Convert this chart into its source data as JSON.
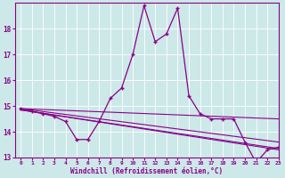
{
  "background_color": "#cde8e8",
  "line_color": "#880088",
  "xlabel": "Windchill (Refroidissement éolien,°C)",
  "xlim": [
    -0.5,
    23
  ],
  "ylim": [
    13,
    19
  ],
  "yticks": [
    13,
    14,
    15,
    16,
    17,
    18
  ],
  "xticks": [
    0,
    1,
    2,
    3,
    4,
    5,
    6,
    7,
    8,
    9,
    10,
    11,
    12,
    13,
    14,
    15,
    16,
    17,
    18,
    19,
    20,
    21,
    22,
    23
  ],
  "main_series": {
    "x": [
      0,
      1,
      2,
      3,
      4,
      5,
      6,
      7,
      8,
      9,
      10,
      11,
      12,
      13,
      14,
      15,
      16,
      17,
      18,
      19,
      20,
      21,
      22,
      23
    ],
    "y": [
      14.9,
      14.8,
      14.7,
      14.6,
      14.4,
      13.7,
      13.7,
      14.4,
      15.3,
      15.7,
      17.0,
      18.9,
      17.5,
      17.8,
      18.8,
      15.4,
      14.7,
      14.5,
      14.5,
      14.5,
      13.6,
      12.8,
      13.3,
      13.4
    ]
  },
  "trend_lines": [
    {
      "x": [
        0,
        23
      ],
      "y": [
        14.9,
        14.5
      ]
    },
    {
      "x": [
        0,
        23
      ],
      "y": [
        14.9,
        13.6
      ]
    },
    {
      "x": [
        0,
        23
      ],
      "y": [
        14.85,
        13.35
      ]
    },
    {
      "x": [
        0,
        23
      ],
      "y": [
        14.85,
        13.3
      ]
    }
  ]
}
